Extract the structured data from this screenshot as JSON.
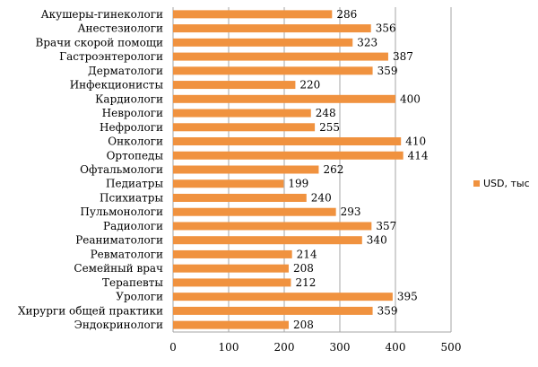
{
  "chart_data": {
    "type": "bar",
    "orientation": "horizontal",
    "categories": [
      "Акушеры-гинекологи",
      "Анестезиологи",
      "Врачи скорой помощи",
      "Гастроэнтерологи",
      "Дерматологи",
      "Инфекционисты",
      "Кардиологи",
      "Неврологи",
      "Нефрологи",
      "Онкологи",
      "Ортопеды",
      "Офтальмологи",
      "Педиатры",
      "Психиатры",
      "Пульмонологи",
      "Радиологи",
      "Реаниматологи",
      "Ревматологи",
      "Семейный врач",
      "Терапевты",
      "Урологи",
      "Хирурги общей практики",
      "Эндокринологи"
    ],
    "series": [
      {
        "name": "USD, тыс",
        "values": [
          286,
          356,
          323,
          387,
          359,
          220,
          400,
          248,
          255,
          410,
          414,
          262,
          199,
          240,
          293,
          357,
          340,
          214,
          208,
          212,
          395,
          359,
          208
        ]
      }
    ],
    "xlim": [
      0,
      500
    ],
    "xticks": [
      "0",
      "100",
      "200",
      "300",
      "400",
      "500"
    ],
    "grid": "vertical",
    "legend_position": "right",
    "colors": {
      "bar": "#F0923F",
      "grid": "#A6A6A6",
      "axis": "#A6A6A6"
    }
  }
}
